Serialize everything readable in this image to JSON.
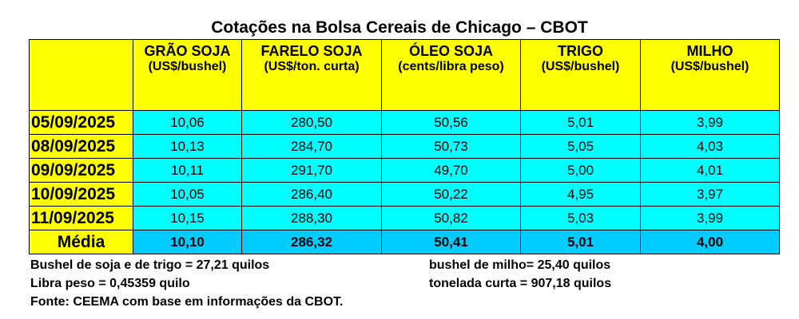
{
  "title": "Cotações na Bolsa Cereais de Chicago – CBOT",
  "columns": [
    {
      "name": "GRÃO SOJA",
      "unit": "(US$/bushel)"
    },
    {
      "name": "FARELO SOJA",
      "unit": "(US$/ton. curta)"
    },
    {
      "name": "ÓLEO SOJA",
      "unit": "(cents/libra peso)"
    },
    {
      "name": "TRIGO",
      "unit": "(US$/bushel)"
    },
    {
      "name": "MILHO",
      "unit": "(US$/bushel)"
    }
  ],
  "rows": [
    {
      "date": "05/09/2025",
      "values": [
        "10,06",
        "280,50",
        "50,56",
        "5,01",
        "3,99"
      ]
    },
    {
      "date": "08/09/2025",
      "values": [
        "10,13",
        "284,70",
        "50,73",
        "5,05",
        "4,03"
      ]
    },
    {
      "date": "09/09/2025",
      "values": [
        "10,11",
        "291,70",
        "49,70",
        "5,00",
        "4,01"
      ]
    },
    {
      "date": "10/09/2025",
      "values": [
        "10,05",
        "286,40",
        "50,22",
        "4,95",
        "3,97"
      ]
    },
    {
      "date": "11/09/2025",
      "values": [
        "10,15",
        "288,30",
        "50,82",
        "5,03",
        "3,99"
      ]
    }
  ],
  "average": {
    "label": "Média",
    "values": [
      "10,10",
      "286,32",
      "50,41",
      "5,01",
      "4,00"
    ]
  },
  "notes": {
    "bushel_soja_trigo": "Bushel de soja e de trigo = 27,21 quilos",
    "bushel_milho": "bushel de milho= 25,40 quilos",
    "libra_peso": "Libra peso = 0,45359 quilo",
    "tonelada_curta": "tonelada curta = 907,18 quilos",
    "fonte": "Fonte: CEEMA com base em informações da CBOT."
  },
  "colors": {
    "header": "#ffff00",
    "cell": "#00ffff",
    "average": "#00ccff"
  }
}
